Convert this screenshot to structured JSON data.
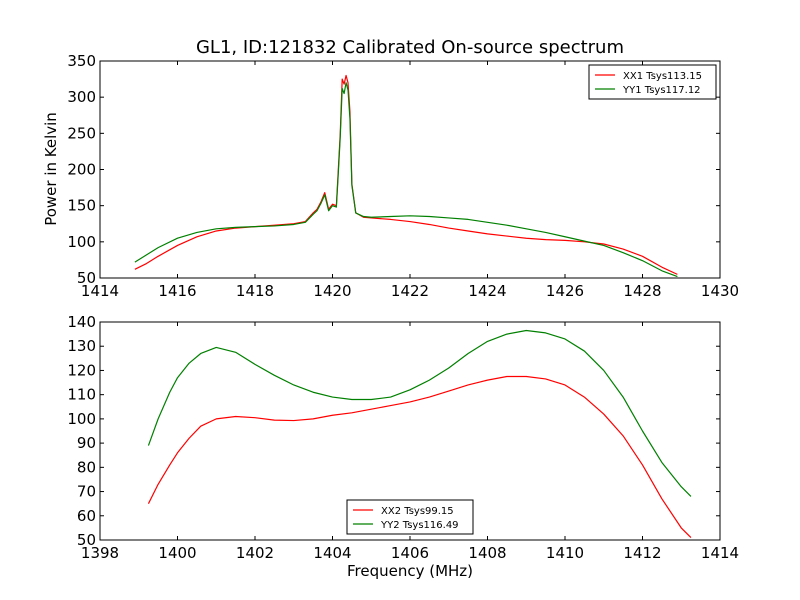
{
  "chart_data": [
    {
      "type": "line",
      "title": "GL1, ID:121832 Calibrated On-source spectrum",
      "xlabel": "",
      "ylabel": "Power in Kelvin",
      "xlim": [
        1414,
        1430
      ],
      "ylim": [
        50,
        350
      ],
      "xticks": [
        "1414",
        "1416",
        "1418",
        "1420",
        "1422",
        "1424",
        "1426",
        "1428",
        "1430"
      ],
      "yticks": [
        "50",
        "100",
        "150",
        "200",
        "250",
        "300",
        "350"
      ],
      "grid": false,
      "legend_position": "top-right",
      "series": [
        {
          "name": "XX1 Tsys113.15",
          "color": "#ff0000",
          "x": [
            1414.9,
            1415.2,
            1415.5,
            1416.0,
            1416.5,
            1417.0,
            1417.5,
            1418.0,
            1418.5,
            1419.0,
            1419.3,
            1419.5,
            1419.6,
            1419.7,
            1419.8,
            1419.9,
            1420.0,
            1420.1,
            1420.15,
            1420.2,
            1420.25,
            1420.3,
            1420.35,
            1420.4,
            1420.45,
            1420.5,
            1420.6,
            1420.8,
            1421.0,
            1421.5,
            1422.0,
            1422.5,
            1423.0,
            1423.5,
            1424.0,
            1424.5,
            1425.0,
            1425.5,
            1426.0,
            1426.5,
            1427.0,
            1427.5,
            1428.0,
            1428.5,
            1428.9
          ],
          "y": [
            62,
            70,
            80,
            95,
            107,
            115,
            119,
            121,
            123,
            125,
            128,
            140,
            145,
            155,
            168,
            145,
            152,
            150,
            200,
            250,
            325,
            318,
            330,
            320,
            280,
            180,
            140,
            134,
            133,
            131,
            128,
            124,
            119,
            115,
            111,
            108,
            105,
            103,
            102,
            100,
            97,
            90,
            80,
            65,
            55
          ]
        },
        {
          "name": "YY1 Tsys117.12",
          "color": "#008000",
          "x": [
            1414.9,
            1415.2,
            1415.5,
            1416.0,
            1416.5,
            1417.0,
            1417.5,
            1418.0,
            1418.5,
            1419.0,
            1419.3,
            1419.5,
            1419.6,
            1419.7,
            1419.8,
            1419.9,
            1420.0,
            1420.1,
            1420.15,
            1420.2,
            1420.25,
            1420.3,
            1420.35,
            1420.4,
            1420.45,
            1420.5,
            1420.6,
            1420.8,
            1421.0,
            1421.5,
            1422.0,
            1422.5,
            1423.0,
            1423.5,
            1424.0,
            1424.5,
            1425.0,
            1425.5,
            1426.0,
            1426.5,
            1427.0,
            1427.5,
            1428.0,
            1428.5,
            1428.9
          ],
          "y": [
            72,
            82,
            92,
            105,
            113,
            118,
            120,
            121,
            122,
            124,
            127,
            138,
            143,
            153,
            165,
            143,
            150,
            148,
            195,
            245,
            312,
            305,
            320,
            310,
            270,
            178,
            140,
            135,
            134,
            135,
            136,
            135,
            133,
            131,
            127,
            123,
            118,
            113,
            107,
            101,
            95,
            85,
            74,
            60,
            52
          ]
        }
      ]
    },
    {
      "type": "line",
      "title": "",
      "xlabel": "Frequency (MHz)",
      "ylabel": "",
      "xlim": [
        1398,
        1414
      ],
      "ylim": [
        50,
        140
      ],
      "xticks": [
        "1398",
        "1400",
        "1402",
        "1404",
        "1406",
        "1408",
        "1410",
        "1412",
        "1414"
      ],
      "yticks": [
        "50",
        "60",
        "70",
        "80",
        "90",
        "100",
        "110",
        "120",
        "130",
        "140"
      ],
      "grid": false,
      "legend_position": "bottom-center",
      "series": [
        {
          "name": "XX2 Tsys99.15",
          "color": "#ff0000",
          "x": [
            1399.25,
            1399.5,
            1399.8,
            1400.0,
            1400.3,
            1400.6,
            1401.0,
            1401.5,
            1402.0,
            1402.5,
            1403.0,
            1403.5,
            1404.0,
            1404.5,
            1405.0,
            1405.5,
            1406.0,
            1406.5,
            1407.0,
            1407.5,
            1408.0,
            1408.5,
            1409.0,
            1409.5,
            1410.0,
            1410.5,
            1411.0,
            1411.5,
            1412.0,
            1412.5,
            1413.0,
            1413.25
          ],
          "y": [
            65,
            73,
            81,
            86,
            92,
            97,
            100,
            101,
            100.5,
            99.5,
            99.3,
            100,
            101.5,
            102.5,
            104,
            105.5,
            107,
            109,
            111.5,
            114,
            116,
            117.5,
            117.5,
            116.5,
            114,
            109,
            102,
            93,
            81,
            67,
            55,
            51
          ]
        },
        {
          "name": "YY2 Tsys116.49",
          "color": "#008000",
          "x": [
            1399.25,
            1399.5,
            1399.8,
            1400.0,
            1400.3,
            1400.6,
            1401.0,
            1401.5,
            1402.0,
            1402.5,
            1403.0,
            1403.5,
            1404.0,
            1404.5,
            1405.0,
            1405.5,
            1406.0,
            1406.5,
            1407.0,
            1407.5,
            1408.0,
            1408.5,
            1409.0,
            1409.5,
            1410.0,
            1410.5,
            1411.0,
            1411.5,
            1412.0,
            1412.5,
            1413.0,
            1413.25
          ],
          "y": [
            89,
            100,
            111,
            117,
            123,
            127,
            129.5,
            127.5,
            122.5,
            118,
            114,
            111,
            109,
            108,
            108,
            109,
            112,
            116,
            121,
            127,
            132,
            135,
            136.5,
            135.5,
            133,
            128,
            120,
            109,
            95,
            82,
            72,
            68
          ]
        }
      ]
    }
  ]
}
